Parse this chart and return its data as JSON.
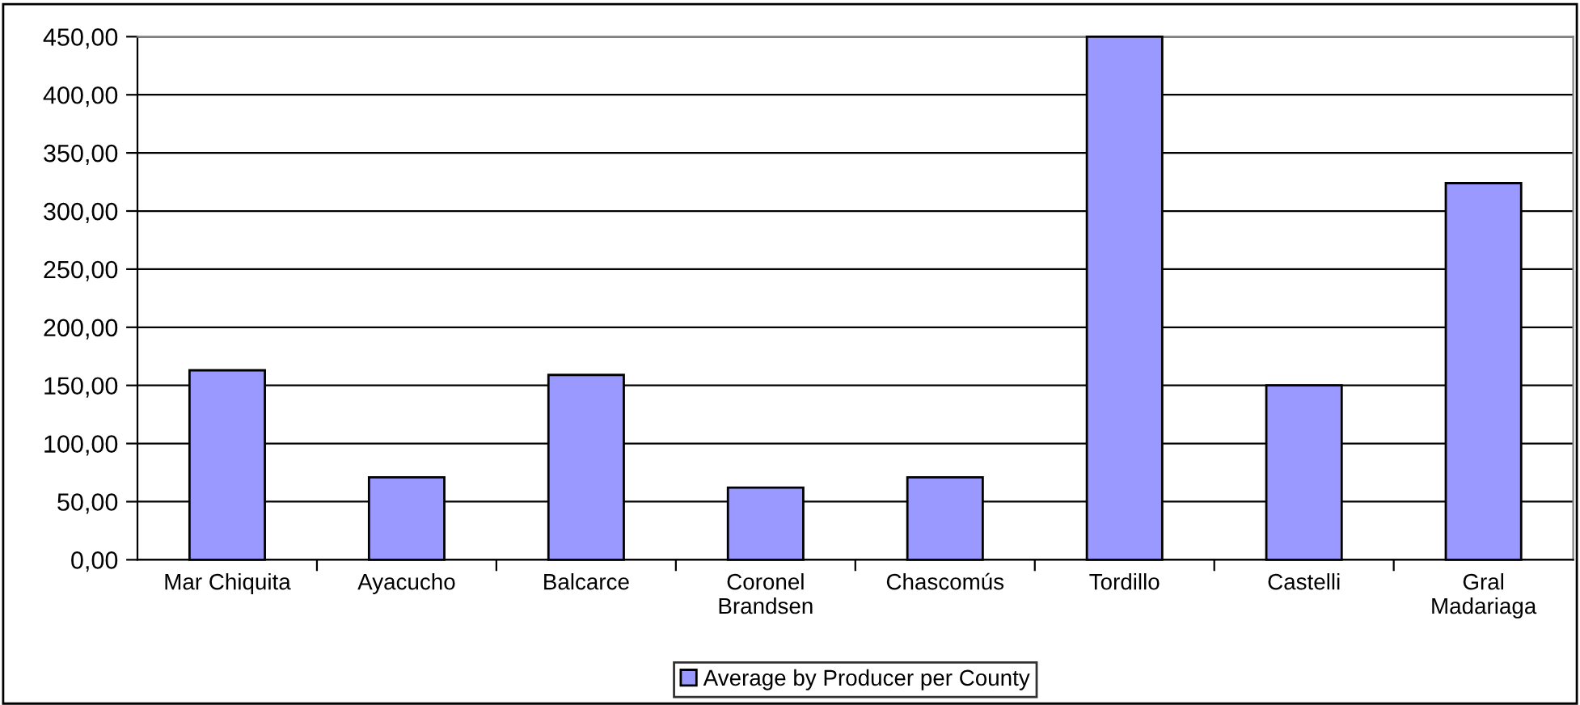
{
  "chart_data": {
    "type": "bar",
    "categories": [
      "Mar Chiquita",
      "Ayacucho",
      "Balcarce",
      "Coronel\nBrandsen",
      "Chascomús",
      "Tordillo",
      "Castelli",
      "Gral\nMadariaga"
    ],
    "series": [
      {
        "name": "Average by Producer per County",
        "color": "#9999ff",
        "values": [
          163,
          71,
          159,
          62,
          71,
          450,
          150,
          324
        ]
      }
    ],
    "ylim": [
      0,
      450
    ],
    "yticks": [
      {
        "value": 0,
        "label": "0,00"
      },
      {
        "value": 50,
        "label": "50,00"
      },
      {
        "value": 100,
        "label": "100,00"
      },
      {
        "value": 150,
        "label": "150,00"
      },
      {
        "value": 200,
        "label": "200,00"
      },
      {
        "value": 250,
        "label": "250,00"
      },
      {
        "value": 300,
        "label": "300,00"
      },
      {
        "value": 350,
        "label": "350,00"
      },
      {
        "value": 400,
        "label": "400,00"
      },
      {
        "value": 450,
        "label": "450,00"
      }
    ],
    "grid": "y",
    "legend": "bottom"
  }
}
